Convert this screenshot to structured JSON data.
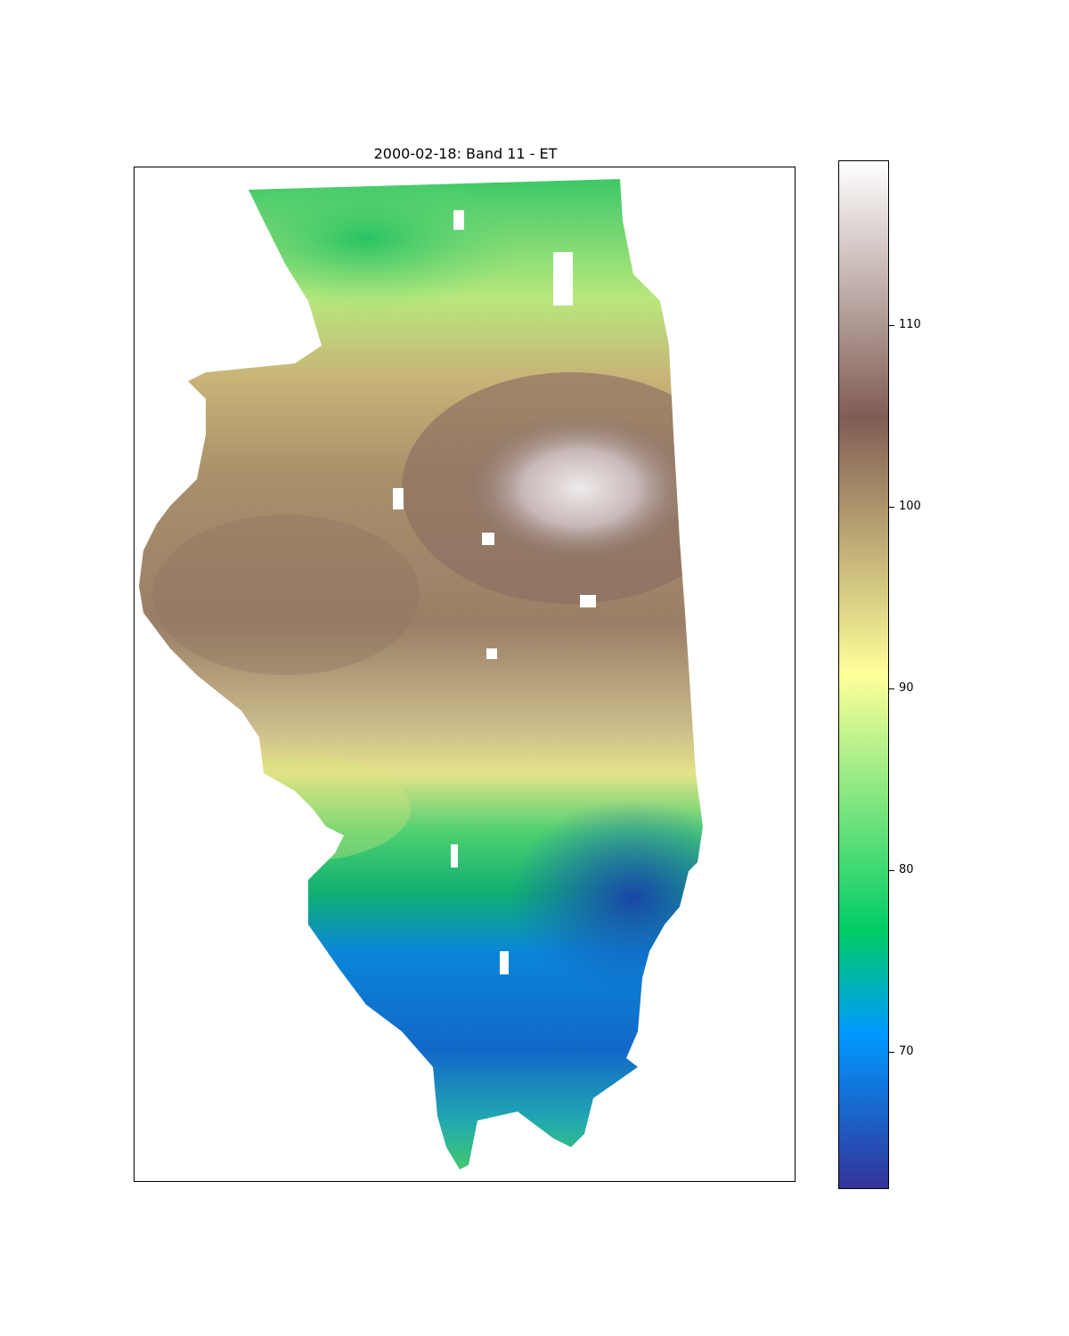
{
  "title": "2000-02-18: Band 11 - ET",
  "colorbar": {
    "colormap": "terrain",
    "range": [
      62.5,
      119
    ],
    "ticks": [
      {
        "value": 110,
        "label": "110"
      },
      {
        "value": 100,
        "label": "100"
      },
      {
        "value": 90,
        "label": "90"
      },
      {
        "value": 80,
        "label": "80"
      },
      {
        "value": 70,
        "label": "70"
      }
    ]
  },
  "map": {
    "region": "Illinois",
    "value_zones": [
      {
        "zone": "north-east",
        "approx_value": 111
      },
      {
        "zone": "central",
        "approx_value": 100
      },
      {
        "zone": "north-west",
        "approx_value": 82
      },
      {
        "zone": "south-central",
        "approx_value": 76
      },
      {
        "zone": "south",
        "approx_value": 69
      }
    ]
  }
}
